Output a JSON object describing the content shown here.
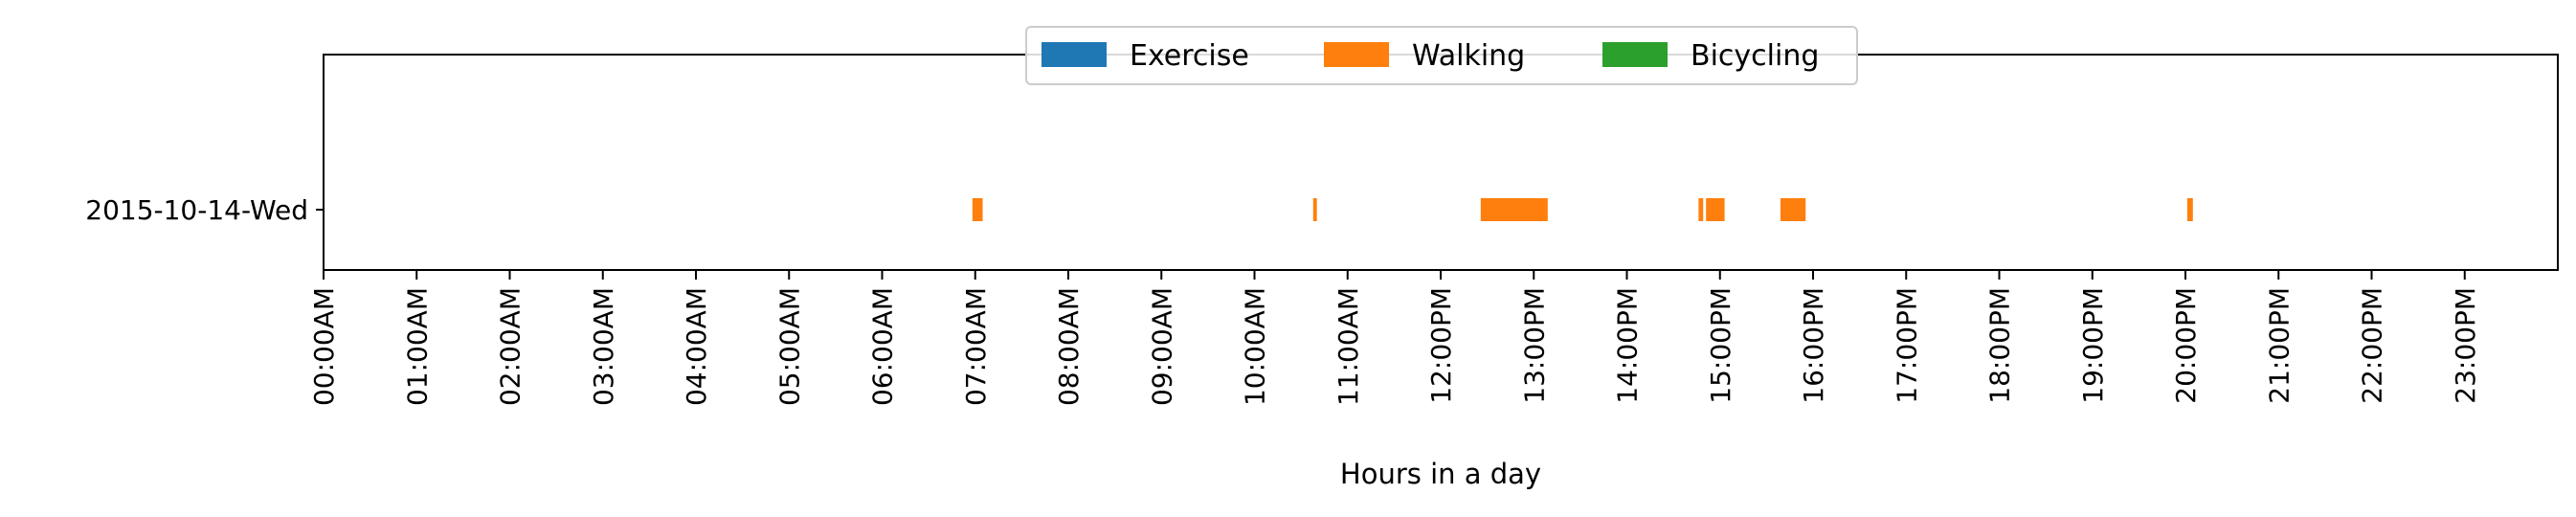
{
  "chart_data": {
    "type": "bar",
    "orientation": "horizontal-timeline",
    "xlabel": "Hours in a day",
    "xlim": [
      0,
      24
    ],
    "x_ticks": [
      "00:00AM",
      "01:00AM",
      "02:00AM",
      "03:00AM",
      "04:00AM",
      "05:00AM",
      "06:00AM",
      "07:00AM",
      "08:00AM",
      "09:00AM",
      "10:00AM",
      "11:00AM",
      "12:00PM",
      "13:00PM",
      "14:00PM",
      "15:00PM",
      "16:00PM",
      "17:00PM",
      "18:00PM",
      "19:00PM",
      "20:00PM",
      "21:00PM",
      "22:00PM",
      "23:00PM"
    ],
    "rows": [
      "2015-10-14-Wed"
    ],
    "legend_position": "top-center",
    "grid": false,
    "series": [
      {
        "name": "Exercise",
        "color": "#1f77b4",
        "intervals": []
      },
      {
        "name": "Walking",
        "color": "#ff7f0e",
        "intervals": [
          {
            "row": "2015-10-14-Wed",
            "start": 6.97,
            "end": 7.08
          },
          {
            "row": "2015-10-14-Wed",
            "start": 10.63,
            "end": 10.67
          },
          {
            "row": "2015-10-14-Wed",
            "start": 12.43,
            "end": 13.15
          },
          {
            "row": "2015-10-14-Wed",
            "start": 14.77,
            "end": 14.82
          },
          {
            "row": "2015-10-14-Wed",
            "start": 14.85,
            "end": 15.05
          },
          {
            "row": "2015-10-14-Wed",
            "start": 15.65,
            "end": 15.92
          },
          {
            "row": "2015-10-14-Wed",
            "start": 20.02,
            "end": 20.08
          }
        ]
      },
      {
        "name": "Bicycling",
        "color": "#2ca02c",
        "intervals": []
      }
    ]
  }
}
